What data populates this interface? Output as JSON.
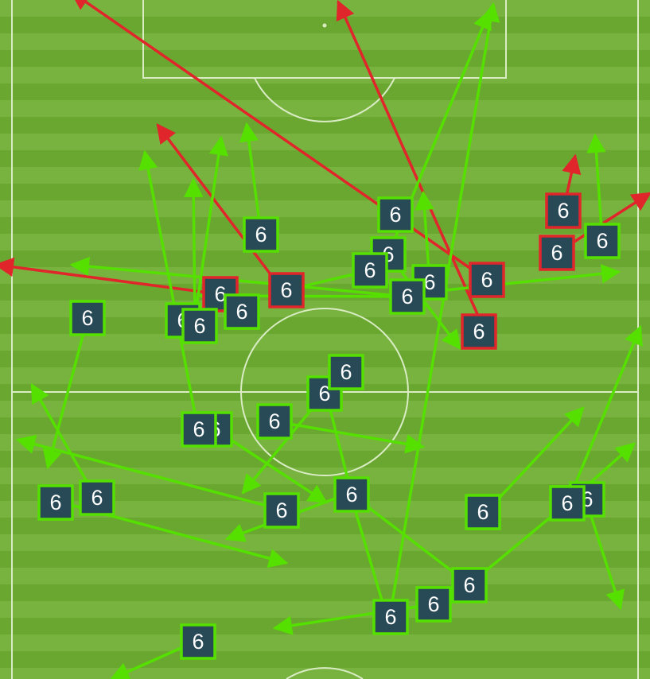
{
  "colors": {
    "stripe_dark": "#6aa731",
    "stripe_light": "#78b340",
    "line": "#d9ecc4",
    "success": "#55e000",
    "fail": "#e0262a",
    "marker_fill": "#284a56",
    "marker_text": "#ffffff"
  },
  "legend": {
    "successful_pass": "success",
    "unsuccessful_pass": "fail"
  },
  "markers": [
    {
      "label": "6",
      "outcome": "success"
    },
    {
      "label": "6",
      "outcome": "success"
    },
    {
      "label": "6",
      "outcome": "success"
    },
    {
      "label": "6",
      "outcome": "success"
    },
    {
      "label": "6",
      "outcome": "success"
    },
    {
      "label": "6",
      "outcome": "fail"
    },
    {
      "label": "6",
      "outcome": "fail"
    },
    {
      "label": "6",
      "outcome": "fail"
    },
    {
      "label": "6",
      "outcome": "fail"
    },
    {
      "label": "6",
      "outcome": "success"
    },
    {
      "label": "6",
      "outcome": "success"
    },
    {
      "label": "6",
      "outcome": "fail"
    },
    {
      "label": "6",
      "outcome": "fail"
    },
    {
      "label": "6",
      "outcome": "success"
    },
    {
      "label": "6",
      "outcome": "success"
    },
    {
      "label": "6",
      "outcome": "success"
    },
    {
      "label": "6",
      "outcome": "success"
    },
    {
      "label": "6",
      "outcome": "success"
    },
    {
      "label": "6",
      "outcome": "success"
    },
    {
      "label": "6",
      "outcome": "success"
    },
    {
      "label": "6",
      "outcome": "success"
    },
    {
      "label": "6",
      "outcome": "success"
    },
    {
      "label": "6",
      "outcome": "success"
    },
    {
      "label": "6",
      "outcome": "success"
    },
    {
      "label": "6",
      "outcome": "success"
    },
    {
      "label": "6",
      "outcome": "success"
    },
    {
      "label": "6",
      "outcome": "success"
    },
    {
      "label": "6",
      "outcome": "success"
    },
    {
      "label": "6",
      "outcome": "success"
    },
    {
      "label": "6",
      "outcome": "success"
    },
    {
      "label": "6",
      "outcome": "success"
    },
    {
      "label": "6",
      "outcome": "success"
    },
    {
      "label": "6",
      "outcome": "success"
    }
  ]
}
